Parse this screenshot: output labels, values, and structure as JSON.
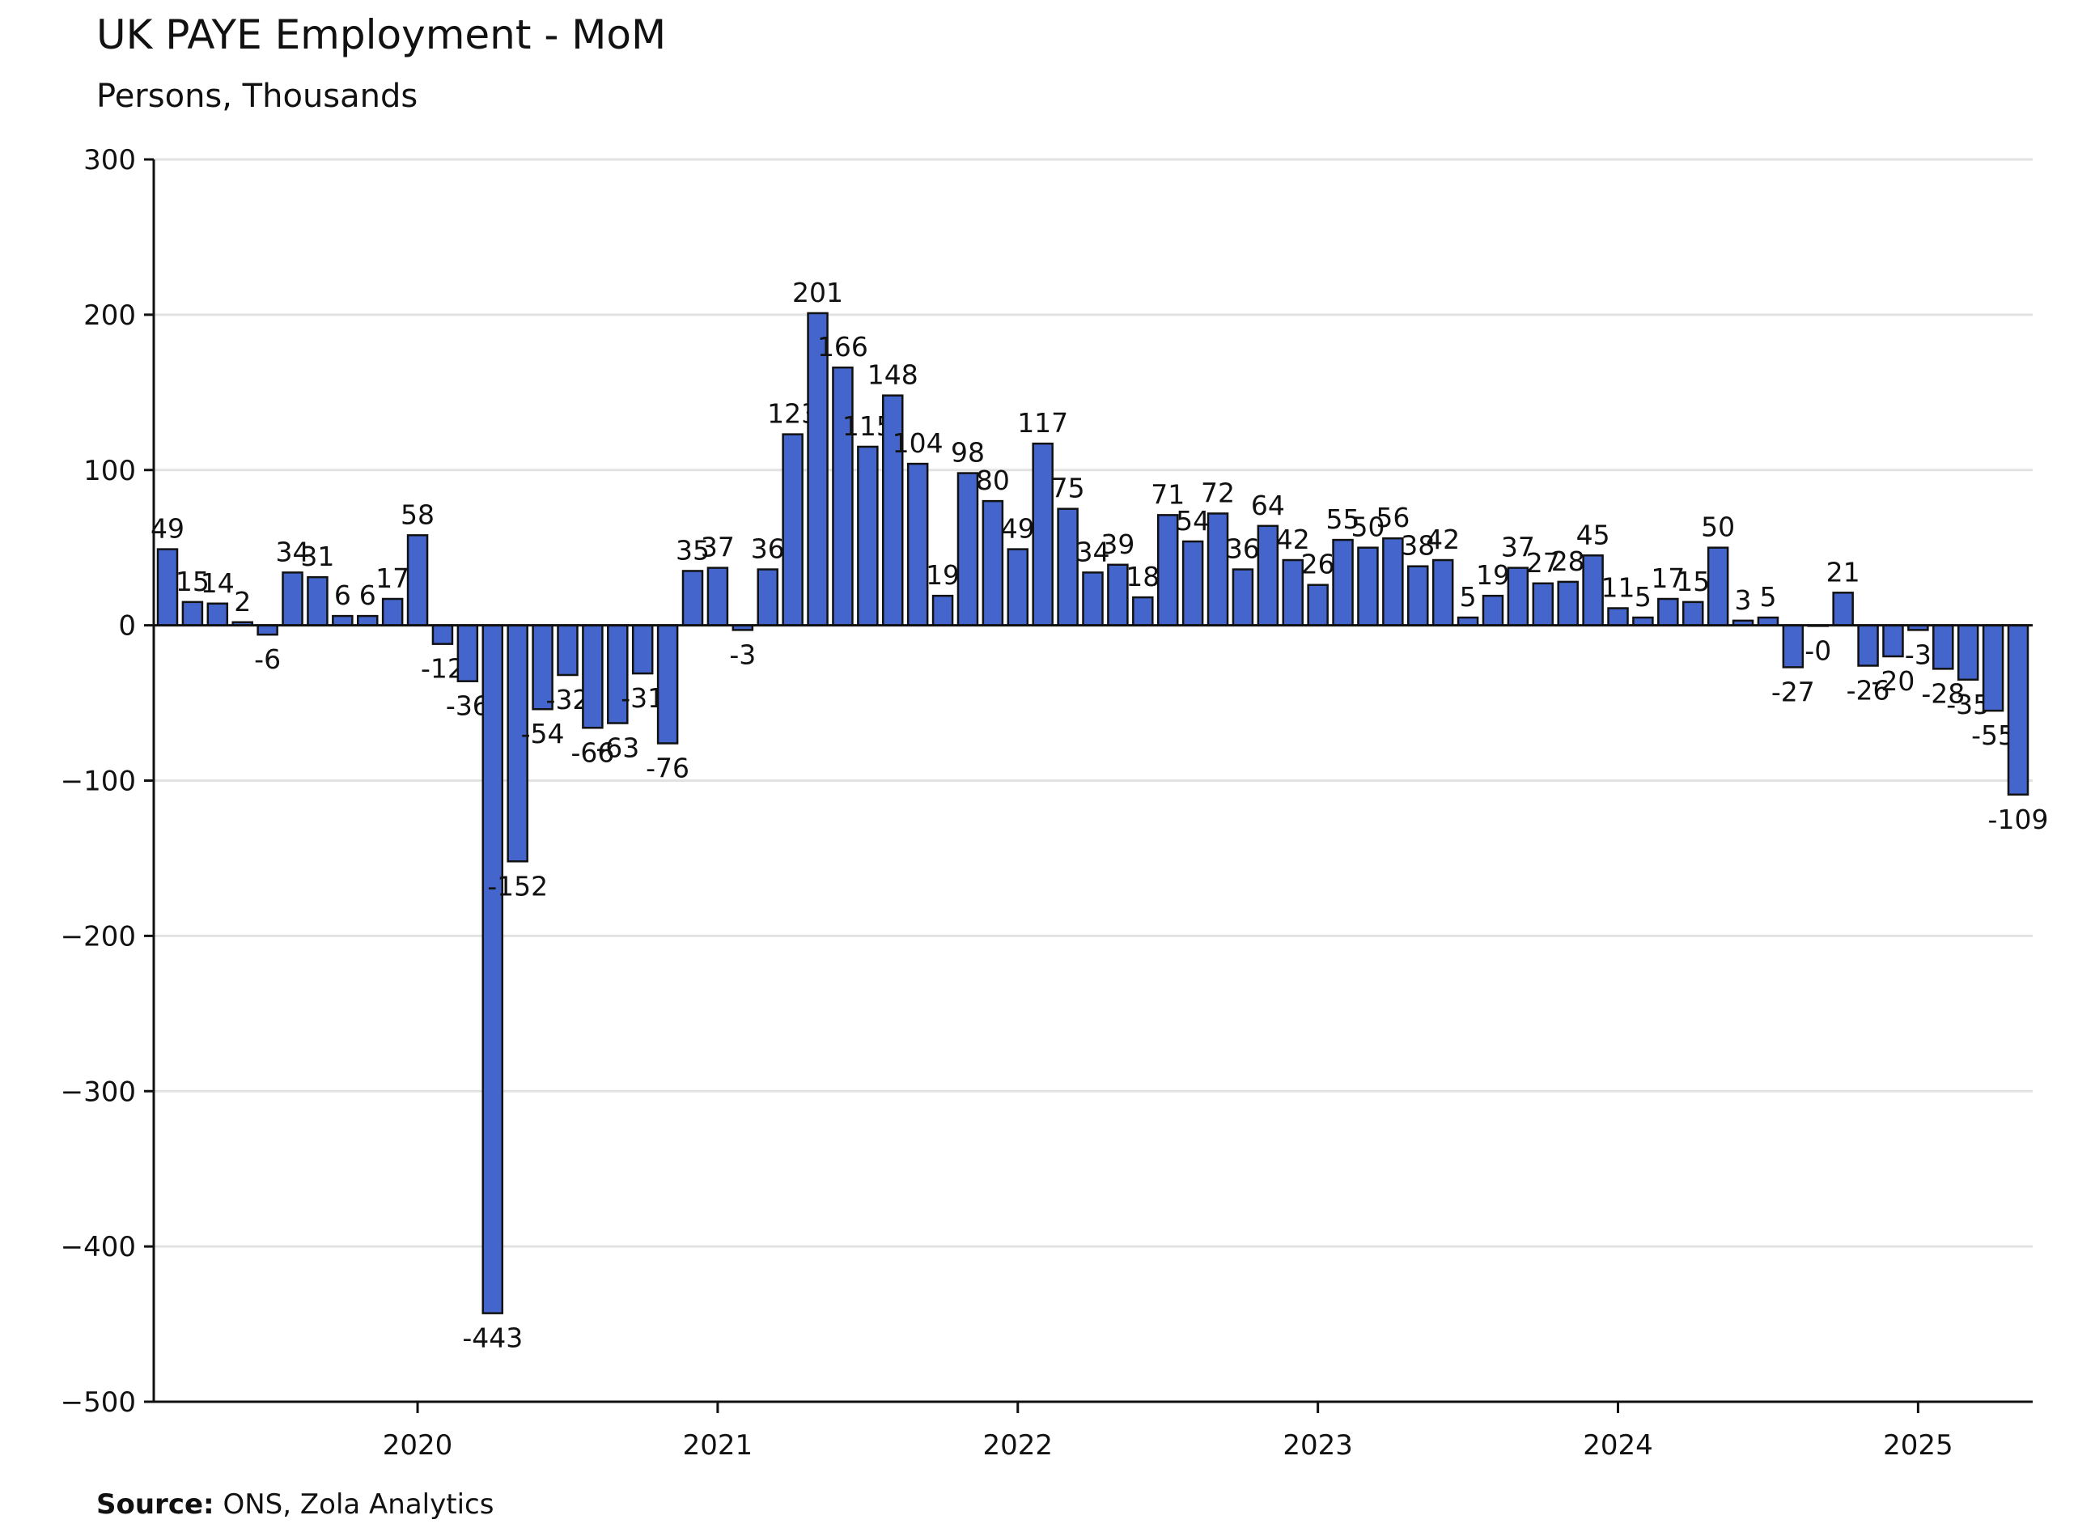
{
  "chart_data": {
    "type": "bar",
    "title": "UK PAYE Employment - MoM",
    "subtitle": "Persons, Thousands",
    "source_label": "Source:",
    "source": "ONS, Zola Analytics",
    "color": "#4466cc",
    "grid": true,
    "categories": [
      null,
      null,
      null,
      null,
      null,
      null,
      null,
      null,
      null,
      null,
      "2020",
      null,
      null,
      null,
      null,
      null,
      null,
      null,
      null,
      null,
      null,
      null,
      "2021",
      null,
      null,
      null,
      null,
      null,
      null,
      null,
      null,
      null,
      null,
      null,
      "2022",
      null,
      null,
      null,
      null,
      null,
      null,
      null,
      null,
      null,
      null,
      null,
      "2023",
      null,
      null,
      null,
      null,
      null,
      null,
      null,
      null,
      null,
      null,
      null,
      "2024",
      null,
      null,
      null,
      null,
      null,
      null,
      null,
      null,
      null,
      null,
      null,
      "2025",
      null,
      null,
      null,
      null
    ],
    "values": [
      49,
      15,
      14,
      2,
      -6,
      34,
      31,
      6,
      6,
      17,
      58,
      -12,
      -36,
      -443,
      -152,
      -54,
      -32,
      -66,
      -63,
      -31,
      -76,
      35,
      37,
      -3,
      36,
      123,
      201,
      166,
      115,
      148,
      104,
      19,
      98,
      80,
      49,
      117,
      75,
      34,
      39,
      18,
      71,
      54,
      72,
      36,
      64,
      42,
      26,
      55,
      50,
      56,
      38,
      42,
      5,
      19,
      37,
      27,
      28,
      45,
      11,
      5,
      17,
      15,
      50,
      3,
      5,
      -27,
      -0.4,
      21,
      -26,
      -20,
      -3,
      -28,
      -35,
      -55,
      -109
    ],
    "value_labels": [
      "49",
      "15",
      "14",
      "2",
      "-6",
      "34",
      "31",
      "6",
      "6",
      "17",
      "58",
      "-12",
      "-36",
      "-443",
      "-152",
      "-54",
      "-32",
      "-66",
      "-63",
      "-31",
      "-76",
      "35",
      "37",
      "-3",
      "36",
      "123",
      "201",
      "166",
      "115",
      "148",
      "104",
      "19",
      "98",
      "80",
      "49",
      "117",
      "75",
      "34",
      "39",
      "18",
      "71",
      "54",
      "72",
      "36",
      "64",
      "42",
      "26",
      "55",
      "50",
      "56",
      "38",
      "42",
      "5",
      "19",
      "37",
      "27",
      "28",
      "45",
      "11",
      "5",
      "17",
      "15",
      "50",
      "3",
      "5",
      "-27",
      "-0",
      "21",
      "-26",
      "-20",
      "-3",
      "-28",
      "-35",
      "-55",
      "-109"
    ],
    "ylim": [
      -500,
      300
    ],
    "yticks": [
      {
        "value": -500,
        "label": "−500"
      },
      {
        "value": -400,
        "label": "−400"
      },
      {
        "value": -300,
        "label": "−300"
      },
      {
        "value": -200,
        "label": "−200"
      },
      {
        "value": -100,
        "label": "−100"
      },
      0,
      100,
      200,
      300
    ]
  }
}
